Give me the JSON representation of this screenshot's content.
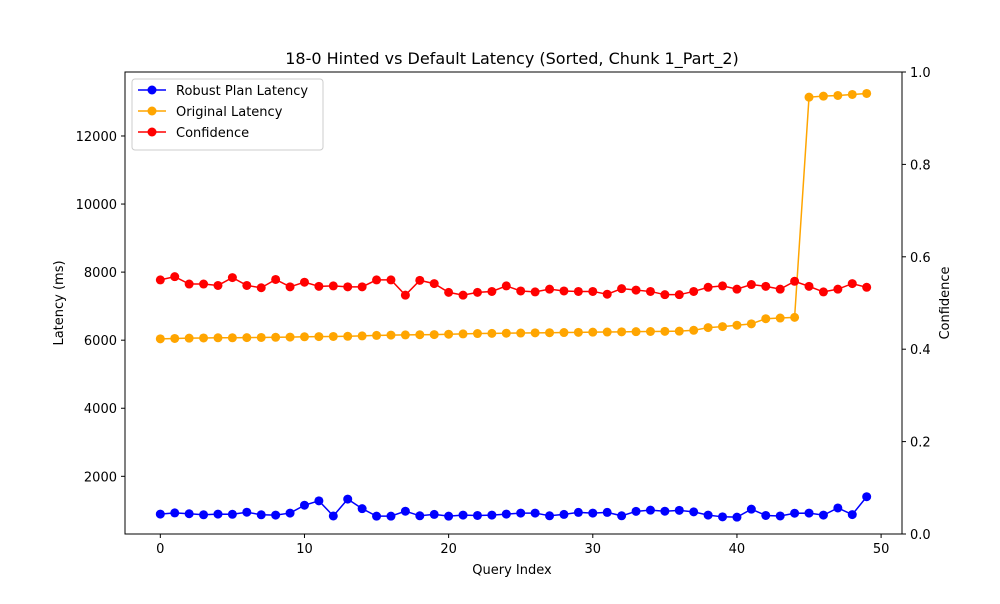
{
  "chart_data": {
    "type": "line",
    "title": "18-0 Hinted vs Default Latency (Sorted, Chunk 1_Part_2)",
    "xlabel": "Query Index",
    "ylabel": "Latency (ms)",
    "y2label": "Confidence",
    "xlim": [
      -2.45,
      51.45
    ],
    "ylim": [
      305,
      13880
    ],
    "y2lim": [
      0,
      1.0
    ],
    "xticks": [
      0,
      10,
      20,
      30,
      40,
      50
    ],
    "yticks": [
      2000,
      4000,
      6000,
      8000,
      10000,
      12000
    ],
    "y2ticks": [
      0.0,
      0.2,
      0.4,
      0.6,
      0.8,
      1.0
    ],
    "y2ticklabels": [
      "0.0",
      "0.2",
      "0.4",
      "0.6",
      "0.8",
      "1.0"
    ],
    "legend_position": "top-left",
    "grid": false,
    "x": [
      0,
      1,
      2,
      3,
      4,
      5,
      6,
      7,
      8,
      9,
      10,
      11,
      12,
      13,
      14,
      15,
      16,
      17,
      18,
      19,
      20,
      21,
      22,
      23,
      24,
      25,
      26,
      27,
      28,
      29,
      30,
      31,
      32,
      33,
      34,
      35,
      36,
      37,
      38,
      39,
      40,
      41,
      42,
      43,
      44,
      45,
      46,
      47,
      48,
      49
    ],
    "series": [
      {
        "name": "Robust Plan Latency",
        "axis": "left",
        "color": "#0000ff",
        "values": [
          890,
          925,
          900,
          870,
          890,
          885,
          945,
          870,
          860,
          920,
          1150,
          1280,
          835,
          1330,
          1050,
          830,
          830,
          975,
          840,
          880,
          830,
          860,
          850,
          860,
          890,
          920,
          920,
          840,
          880,
          940,
          920,
          940,
          840,
          970,
          1005,
          975,
          1000,
          955,
          860,
          810,
          800,
          1035,
          850,
          835,
          915,
          920,
          860,
          1070,
          875,
          1400
        ]
      },
      {
        "name": "Original Latency",
        "axis": "left",
        "color": "#ffa500",
        "values": [
          6040,
          6050,
          6060,
          6065,
          6070,
          6070,
          6075,
          6080,
          6085,
          6090,
          6100,
          6105,
          6110,
          6115,
          6125,
          6140,
          6150,
          6155,
          6160,
          6165,
          6175,
          6185,
          6195,
          6200,
          6205,
          6210,
          6215,
          6220,
          6225,
          6230,
          6235,
          6240,
          6245,
          6250,
          6255,
          6260,
          6265,
          6290,
          6370,
          6400,
          6440,
          6480,
          6630,
          6650,
          6670,
          13140,
          13170,
          13190,
          13220,
          13250
        ]
      },
      {
        "name": "Confidence",
        "axis": "right",
        "color": "#ff0000",
        "values": [
          0.55,
          0.557,
          0.541,
          0.541,
          0.538,
          0.555,
          0.538,
          0.533,
          0.551,
          0.535,
          0.545,
          0.536,
          0.537,
          0.535,
          0.535,
          0.55,
          0.55,
          0.517,
          0.549,
          0.542,
          0.523,
          0.517,
          0.523,
          0.525,
          0.537,
          0.526,
          0.524,
          0.53,
          0.526,
          0.525,
          0.525,
          0.519,
          0.531,
          0.528,
          0.525,
          0.518,
          0.518,
          0.525,
          0.534,
          0.537,
          0.53,
          0.54,
          0.536,
          0.53,
          0.547,
          0.536,
          0.524,
          0.53,
          0.542,
          0.534
        ]
      }
    ]
  }
}
